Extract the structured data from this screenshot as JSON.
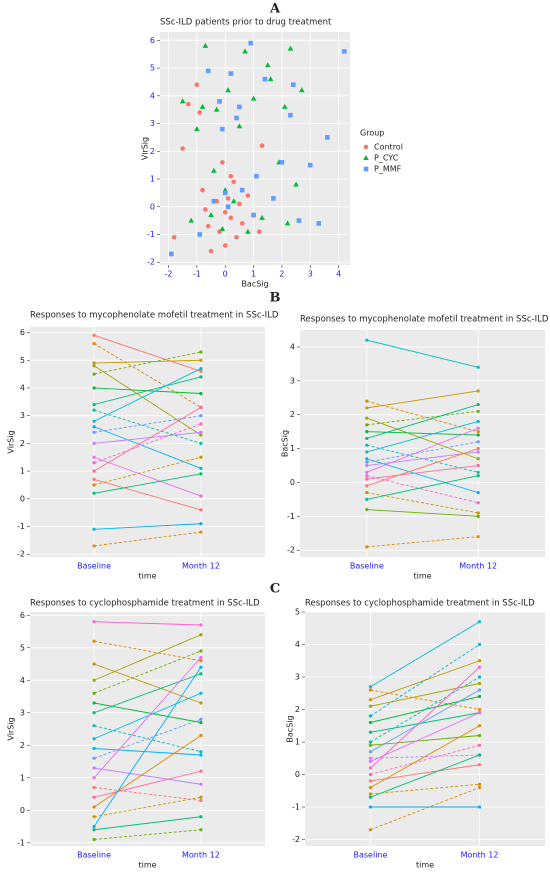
{
  "chart_data": [
    {
      "type": "scatter",
      "panel": "A",
      "title": "SSc-ILD patients prior to drug treatment",
      "x_label": "BacSig",
      "y_label": "VirSig",
      "legend_title": "Group",
      "xlim": [
        -2.3,
        4.4
      ],
      "ylim": [
        -2.1,
        6.3
      ],
      "xticks": [
        -2,
        -1,
        0,
        1,
        2,
        3,
        4
      ],
      "yticks": [
        -2,
        -1,
        0,
        1,
        2,
        3,
        4,
        5,
        6
      ],
      "grid": true,
      "series": [
        {
          "name": "Control",
          "color": "#F8766D",
          "shape": "circle",
          "x": [
            -1.8,
            -1.5,
            -1.0,
            -0.8,
            -0.6,
            -0.5,
            -0.3,
            -0.2,
            -0.1,
            0.0,
            0.1,
            0.2,
            0.3,
            0.4,
            0.5,
            0.6,
            0.8,
            1.0,
            1.2,
            -0.9,
            -0.7,
            0.2,
            1.3,
            -1.3,
            0.0
          ],
          "y": [
            -1.1,
            2.1,
            4.4,
            0.6,
            -0.7,
            -1.6,
            0.2,
            -0.9,
            1.6,
            -1.4,
            0.3,
            -0.4,
            0.9,
            -1.1,
            0.1,
            -0.6,
            0.4,
            -0.3,
            -0.9,
            3.4,
            -0.1,
            1.1,
            2.2,
            3.7,
            -0.2
          ]
        },
        {
          "name": "P_CYC",
          "color": "#00BA38",
          "shape": "triangle",
          "x": [
            -1.5,
            -1.2,
            -1.0,
            -0.8,
            -0.7,
            -0.5,
            -0.3,
            -0.1,
            0.1,
            0.3,
            0.5,
            0.7,
            1.0,
            1.3,
            1.6,
            1.9,
            2.1,
            2.3,
            2.5,
            2.7,
            0.8,
            -0.4,
            1.5,
            2.2,
            0.0
          ],
          "y": [
            3.8,
            -0.5,
            2.8,
            3.6,
            5.8,
            -0.3,
            3.5,
            -0.8,
            4.2,
            0.2,
            2.9,
            5.6,
            3.9,
            -0.4,
            4.6,
            1.6,
            3.6,
            5.7,
            0.8,
            4.2,
            -0.9,
            1.3,
            5.1,
            -0.6,
            0.6
          ]
        },
        {
          "name": "P_MMF",
          "color": "#619CFF",
          "shape": "square",
          "x": [
            -1.9,
            -0.9,
            -0.6,
            -0.4,
            -0.2,
            0.0,
            0.2,
            0.4,
            0.6,
            0.9,
            1.1,
            1.4,
            1.7,
            2.0,
            2.3,
            2.6,
            3.0,
            3.3,
            3.6,
            4.2,
            0.1,
            -0.1,
            0.5,
            1.0,
            2.4
          ],
          "y": [
            -1.7,
            -1.0,
            4.9,
            0.2,
            3.8,
            0.5,
            4.8,
            3.2,
            0.6,
            5.9,
            1.1,
            4.6,
            0.3,
            1.6,
            3.3,
            -0.5,
            1.5,
            -0.6,
            2.5,
            5.6,
            0.0,
            2.8,
            3.6,
            -0.3,
            4.4
          ]
        }
      ]
    },
    {
      "type": "line",
      "panel": "B",
      "title": "Responses to mycophenolate mofetil treatment in SSc-ILD",
      "x_label": "time",
      "y_label": "VirSig",
      "categories": [
        "Baseline",
        "Month 12"
      ],
      "ylim": [
        -2.1,
        6.2
      ],
      "yticks": [
        -2,
        -1,
        0,
        1,
        2,
        3,
        4,
        5,
        6
      ],
      "grid": true,
      "series": [
        {
          "color": "#F8766D",
          "values": [
            5.9,
            4.6
          ]
        },
        {
          "color": "#E58700",
          "values": [
            5.6,
            3.3
          ]
        },
        {
          "color": "#C99800",
          "values": [
            4.9,
            5.0
          ]
        },
        {
          "color": "#A3A500",
          "values": [
            4.8,
            2.3
          ]
        },
        {
          "color": "#6BB100",
          "values": [
            4.5,
            5.3
          ]
        },
        {
          "color": "#00BA38",
          "values": [
            4.0,
            3.8
          ]
        },
        {
          "color": "#00BF7D",
          "values": [
            3.4,
            4.4
          ]
        },
        {
          "color": "#00C0AF",
          "values": [
            3.2,
            2.0
          ]
        },
        {
          "color": "#00BCD8",
          "values": [
            2.8,
            4.7
          ]
        },
        {
          "color": "#00B0F6",
          "values": [
            2.6,
            1.1
          ]
        },
        {
          "color": "#619CFF",
          "values": [
            2.4,
            3.0
          ]
        },
        {
          "color": "#B983FF",
          "values": [
            2.0,
            2.4
          ]
        },
        {
          "color": "#E76BF3",
          "values": [
            1.5,
            0.1
          ]
        },
        {
          "color": "#FD61D1",
          "values": [
            1.3,
            2.7
          ]
        },
        {
          "color": "#FF67A4",
          "values": [
            1.0,
            3.3
          ]
        },
        {
          "color": "#F8766D",
          "values": [
            0.7,
            -0.4
          ]
        },
        {
          "color": "#C99800",
          "values": [
            0.5,
            1.5
          ]
        },
        {
          "color": "#00BF7D",
          "values": [
            0.2,
            0.9
          ]
        },
        {
          "color": "#00B0F6",
          "values": [
            -1.1,
            -0.9
          ]
        },
        {
          "color": "#E58700",
          "values": [
            -1.7,
            -1.2
          ]
        }
      ]
    },
    {
      "type": "line",
      "title": "Responses to mycophenolate mofetil treatment in SSc-ILD",
      "x_label": "time",
      "y_label": "BacSig",
      "categories": [
        "Baseline",
        "Month 12"
      ],
      "ylim": [
        -2.2,
        4.5
      ],
      "yticks": [
        -2,
        -1,
        0,
        1,
        2,
        3,
        4
      ],
      "grid": true,
      "series": [
        {
          "color": "#00BFC4",
          "values": [
            4.2,
            3.4
          ]
        },
        {
          "color": "#E58700",
          "values": [
            2.4,
            1.5
          ]
        },
        {
          "color": "#C99800",
          "values": [
            2.2,
            2.7
          ]
        },
        {
          "color": "#A3A500",
          "values": [
            1.9,
            0.7
          ]
        },
        {
          "color": "#6BB100",
          "values": [
            1.7,
            2.1
          ]
        },
        {
          "color": "#00BA38",
          "values": [
            1.5,
            1.4
          ]
        },
        {
          "color": "#00BF7D",
          "values": [
            1.3,
            2.3
          ]
        },
        {
          "color": "#00C0AF",
          "values": [
            1.1,
            0.3
          ]
        },
        {
          "color": "#00BCD8",
          "values": [
            0.9,
            1.8
          ]
        },
        {
          "color": "#00B0F6",
          "values": [
            0.7,
            -0.3
          ]
        },
        {
          "color": "#619CFF",
          "values": [
            0.6,
            1.2
          ]
        },
        {
          "color": "#B983FF",
          "values": [
            0.5,
            0.9
          ]
        },
        {
          "color": "#E76BF3",
          "values": [
            0.3,
            1.6
          ]
        },
        {
          "color": "#FD61D1",
          "values": [
            0.2,
            -0.6
          ]
        },
        {
          "color": "#FF67A4",
          "values": [
            0.1,
            0.5
          ]
        },
        {
          "color": "#F8766D",
          "values": [
            -0.1,
            1.0
          ]
        },
        {
          "color": "#C99800",
          "values": [
            -0.3,
            -0.9
          ]
        },
        {
          "color": "#00BF7D",
          "values": [
            -0.5,
            0.2
          ]
        },
        {
          "color": "#6BB100",
          "values": [
            -0.8,
            -1.0
          ]
        },
        {
          "color": "#E58700",
          "values": [
            -1.9,
            -1.6
          ]
        }
      ]
    },
    {
      "type": "line",
      "panel": "C",
      "title": "Responses to cyclophosphamide treatment in SSc-ILD",
      "x_label": "time",
      "y_label": "VirSig",
      "categories": [
        "Baseline",
        "Month 12"
      ],
      "ylim": [
        -1.1,
        6.1
      ],
      "yticks": [
        -1,
        0,
        1,
        2,
        3,
        4,
        5,
        6
      ],
      "grid": true,
      "series": [
        {
          "color": "#FD61D1",
          "values": [
            5.8,
            5.7
          ]
        },
        {
          "color": "#E58700",
          "values": [
            5.2,
            4.6
          ]
        },
        {
          "color": "#C99800",
          "values": [
            4.5,
            3.3
          ]
        },
        {
          "color": "#A3A500",
          "values": [
            4.0,
            5.4
          ]
        },
        {
          "color": "#6BB100",
          "values": [
            3.6,
            4.9
          ]
        },
        {
          "color": "#00BA38",
          "values": [
            3.3,
            2.7
          ]
        },
        {
          "color": "#00BF7D",
          "values": [
            3.0,
            4.2
          ]
        },
        {
          "color": "#00C0AF",
          "values": [
            2.6,
            1.8
          ]
        },
        {
          "color": "#00BCD8",
          "values": [
            2.2,
            3.6
          ]
        },
        {
          "color": "#00B0F6",
          "values": [
            1.9,
            1.7
          ]
        },
        {
          "color": "#619CFF",
          "values": [
            1.6,
            2.8
          ]
        },
        {
          "color": "#B983FF",
          "values": [
            1.3,
            0.8
          ]
        },
        {
          "color": "#E76BF3",
          "values": [
            1.0,
            4.7
          ]
        },
        {
          "color": "#F8766D",
          "values": [
            0.7,
            0.3
          ]
        },
        {
          "color": "#FF67A4",
          "values": [
            0.4,
            1.2
          ]
        },
        {
          "color": "#E58700",
          "values": [
            0.1,
            2.3
          ]
        },
        {
          "color": "#C99800",
          "values": [
            -0.2,
            0.4
          ]
        },
        {
          "color": "#00B0F6",
          "values": [
            -0.5,
            4.4
          ]
        },
        {
          "color": "#00BF7D",
          "values": [
            -0.6,
            -0.2
          ]
        },
        {
          "color": "#6BB100",
          "values": [
            -0.9,
            -0.6
          ]
        }
      ]
    },
    {
      "type": "line",
      "title": "Responses to cyclophosphamide treatment in SSc-ILD",
      "x_label": "time",
      "y_label": "BacSig",
      "categories": [
        "Baseline",
        "Month 12"
      ],
      "ylim": [
        -2.2,
        5.0
      ],
      "yticks": [
        -2,
        -1,
        0,
        1,
        2,
        3,
        4,
        5
      ],
      "grid": true,
      "series": [
        {
          "color": "#00BCD8",
          "values": [
            2.7,
            4.7
          ]
        },
        {
          "color": "#E58700",
          "values": [
            2.6,
            2.0
          ]
        },
        {
          "color": "#C99800",
          "values": [
            2.3,
            3.5
          ]
        },
        {
          "color": "#A3A500",
          "values": [
            2.1,
            2.8
          ]
        },
        {
          "color": "#00B0F6",
          "values": [
            1.8,
            4.0
          ]
        },
        {
          "color": "#00BA38",
          "values": [
            1.6,
            2.4
          ]
        },
        {
          "color": "#00BF7D",
          "values": [
            1.3,
            1.9
          ]
        },
        {
          "color": "#00C0AF",
          "values": [
            1.0,
            3.0
          ]
        },
        {
          "color": "#6BB100",
          "values": [
            0.9,
            1.2
          ]
        },
        {
          "color": "#619CFF",
          "values": [
            0.7,
            2.6
          ]
        },
        {
          "color": "#B983FF",
          "values": [
            0.5,
            0.6
          ]
        },
        {
          "color": "#E76BF3",
          "values": [
            0.4,
            1.9
          ]
        },
        {
          "color": "#FD61D1",
          "values": [
            0.2,
            3.3
          ]
        },
        {
          "color": "#FF67A4",
          "values": [
            0.0,
            0.9
          ]
        },
        {
          "color": "#F8766D",
          "values": [
            -0.2,
            0.3
          ]
        },
        {
          "color": "#E58700",
          "values": [
            -0.4,
            1.5
          ]
        },
        {
          "color": "#C99800",
          "values": [
            -0.6,
            -0.3
          ]
        },
        {
          "color": "#00BF7D",
          "values": [
            -0.7,
            0.6
          ]
        },
        {
          "color": "#00B0F6",
          "values": [
            -1.0,
            -1.0
          ]
        },
        {
          "color": "#E58700",
          "values": [
            -1.7,
            -0.4
          ]
        }
      ]
    }
  ]
}
